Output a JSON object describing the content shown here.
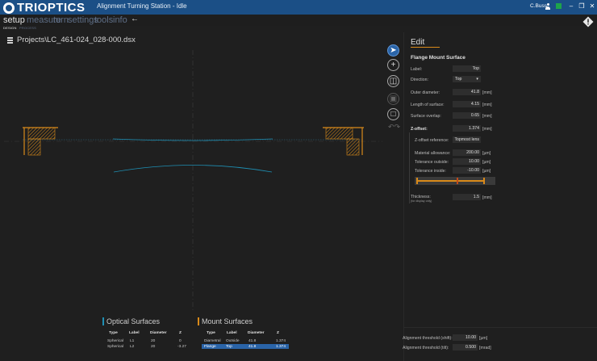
{
  "app": {
    "brand": "TRIOPTICS",
    "window_title": "Alignment Turning Station - Idle",
    "user": "C.Buss",
    "status_color": "#1ea44b",
    "accent": "#d98a1a",
    "selection_blue": "#2a64a8"
  },
  "menu": {
    "items": [
      {
        "label": "setup",
        "active": true
      },
      {
        "label": "measure",
        "active": false
      },
      {
        "label": "turn",
        "active": false
      },
      {
        "label": "settings",
        "active": false
      },
      {
        "label": "tools",
        "active": false
      },
      {
        "label": "info",
        "active": false
      }
    ],
    "back_icon": "arrow-left-icon"
  },
  "subnav": {
    "design": "DESIGN",
    "process": "PROCESS"
  },
  "project": {
    "path": "Projects\\LC_461-024_028-000.dsx"
  },
  "tools": {
    "items": [
      "pointer-icon",
      "add-icon",
      "trash-icon",
      "save-icon",
      "document-icon",
      "undo-redo-icon"
    ]
  },
  "edit": {
    "title": "Edit",
    "section": "Flange Mount Surface",
    "label_label": "Label:",
    "label_value": "Top",
    "direction_label": "Direction:",
    "direction_value": "Top",
    "outer_diameter_label": "Outer diameter:",
    "outer_diameter_value": "41.8",
    "length_label": "Length of surface:",
    "length_value": "4.15",
    "overlap_label": "Surface overlap:",
    "overlap_value": "0.65",
    "unit_mm": "[mm]",
    "zoffset_label": "Z-offset:",
    "zoffset_value": "1.374",
    "zref_label": "Z-offset reference:",
    "zref_value": "Topmost lens",
    "material_label": "Material allowance:",
    "material_value": "200.00",
    "material_unit": "[µm]",
    "tol_out_label": "Tolerance outside:",
    "tol_out_value": "10.00",
    "tol_in_label": "Tolerance inside:",
    "tol_in_value": "-10.00",
    "unit_um": "[µm]",
    "thickness_label": "Thickness:",
    "thickness_note": "(for display only)",
    "thickness_value": "1.5",
    "align_shift_label": "Alignment threshold (shift):",
    "align_shift_value": "10.00",
    "align_tilt_label": "Alignment threshold (tilt):",
    "align_tilt_value": "0.500",
    "unit_mrad": "[mrad]"
  },
  "optical": {
    "title": "Optical Surfaces",
    "color": "#1f8fb3",
    "headers": [
      "Type",
      "Label",
      "Diameter",
      "Z"
    ],
    "rows": [
      [
        "Spherical",
        "L1",
        "20",
        "0"
      ],
      [
        "Spherical",
        "L2",
        "20",
        "-3.27"
      ]
    ]
  },
  "mount": {
    "title": "Mount Surfaces",
    "color": "#d98a1a",
    "headers": [
      "Type",
      "Label",
      "Diameter",
      "Z"
    ],
    "rows": [
      [
        "Diametral",
        "Outside",
        "41.8",
        "1.374"
      ],
      [
        "Flange",
        "Top",
        "41.8",
        "1.374"
      ]
    ]
  }
}
